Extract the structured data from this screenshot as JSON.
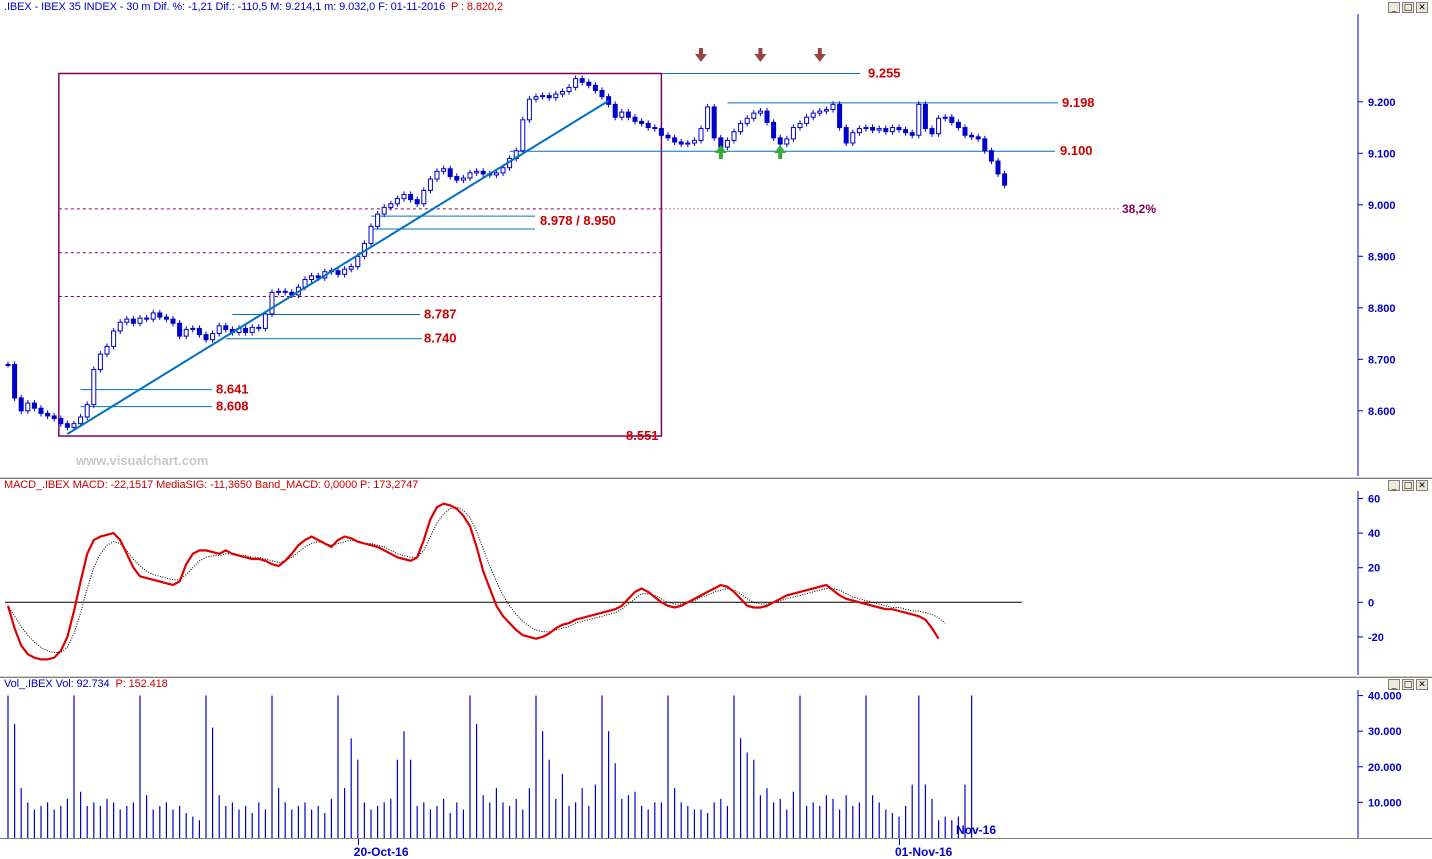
{
  "main_panel": {
    "header_main": ".IBEX - IBEX 35 INDEX -  30 m  Dif. %: -1,21  Dif.: -110,5  M: 9.214,1  m: 9.032,0  F: 01-11-2016",
    "header_price": "P : 8.820,2",
    "watermark": "www.visualchart.com"
  },
  "macd_panel": {
    "header_main": "MACD_.IBEX MACD: -22,1517  MediaSIG: -11,3650  Band_MACD: 0,0000  P: 173,2747"
  },
  "vol_panel": {
    "header_main": "Vol_.IBEX Vol: 92.734",
    "header_price": "P: 152.418",
    "inline_label": "Nov-16"
  },
  "window_buttons": [
    "_",
    "□",
    "✕"
  ],
  "x_axis": {
    "date_labels": [
      {
        "label": "20-Oct-16",
        "bar": 53
      },
      {
        "label": "01-Nov-16",
        "bar": 135
      }
    ]
  },
  "colors": {
    "candles": "#0000cc",
    "levels": "#cc0000",
    "trend": "#0070c0",
    "fib": "#800060",
    "macd": "#dd0000",
    "signal": "#000000",
    "vol": "#0000cc",
    "up_arrow": "#3aa83a",
    "down_arrow": "#994444"
  },
  "chart_data": [
    {
      "type": "candlestick",
      "y_axis": {
        "ticks": [
          "9.200",
          "9.100",
          "9.000",
          "8.900",
          "8.800",
          "8.700",
          "8.600"
        ],
        "ylim": [
          8520,
          9320
        ],
        "right_side": true
      },
      "levels": [
        {
          "label": "9.255",
          "value": 9255
        },
        {
          "label": "9.198",
          "value": 9198
        },
        {
          "label": "9.100",
          "value": 9104
        },
        {
          "label": "8.978 / 8.950",
          "value": 8978,
          "value2": 8953
        },
        {
          "label": "8.787",
          "value": 8787
        },
        {
          "label": "8.740",
          "value": 8740
        },
        {
          "label": "8.641",
          "value": 8641
        },
        {
          "label": "8.608",
          "value": 8608
        },
        {
          "label": "8.551",
          "value": 8551
        }
      ],
      "fib_label": "38,2%",
      "fib_lines": [
        8992,
        8907,
        8822
      ],
      "trendline": {
        "from_bar": 9,
        "from_value": 8555,
        "to_bar": 91,
        "to_value": 9202
      },
      "arrows_down_bars": [
        105,
        114,
        123
      ],
      "arrows_up_bars": [
        108,
        117
      ],
      "close_series": [
        8690,
        8625,
        8600,
        8615,
        8605,
        8595,
        8590,
        8585,
        8575,
        8568,
        8575,
        8588,
        8612,
        8680,
        8710,
        8725,
        8755,
        8772,
        8778,
        8770,
        8780,
        8778,
        8790,
        8782,
        8778,
        8770,
        8745,
        8758,
        8760,
        8748,
        8738,
        8750,
        8765,
        8758,
        8752,
        8760,
        8752,
        8762,
        8760,
        8788,
        8830,
        8832,
        8830,
        8825,
        8840,
        8855,
        8862,
        8858,
        8870,
        8872,
        8865,
        8875,
        8880,
        8900,
        8925,
        8958,
        8982,
        8995,
        9002,
        9012,
        9020,
        9010,
        9002,
        9028,
        9050,
        9065,
        9070,
        9055,
        9048,
        9052,
        9062,
        9065,
        9060,
        9058,
        9062,
        9072,
        9090,
        9105,
        9165,
        9205,
        9210,
        9212,
        9208,
        9215,
        9220,
        9228,
        9245,
        9238,
        9232,
        9222,
        9210,
        9195,
        9170,
        9180,
        9170,
        9162,
        9158,
        9150,
        9148,
        9135,
        9130,
        9122,
        9118,
        9120,
        9125,
        9148,
        9190,
        9130,
        9112,
        9125,
        9142,
        9158,
        9168,
        9178,
        9182,
        9160,
        9130,
        9118,
        9128,
        9150,
        9158,
        9170,
        9178,
        9182,
        9185,
        9195,
        9150,
        9120,
        9140,
        9148,
        9150,
        9145,
        9148,
        9142,
        9150,
        9146,
        9140,
        9135,
        9195,
        9148,
        9138,
        9168,
        9170,
        9160,
        9150,
        9135,
        9132,
        9128,
        9105,
        9085,
        9060,
        9038
      ]
    },
    {
      "type": "line",
      "y_axis": {
        "ticks": [
          "60",
          "40",
          "20",
          "0",
          "-20"
        ],
        "ylim": [
          -42,
          62
        ]
      },
      "zero_line": 0,
      "series": [
        {
          "values": [
            -2,
            -15,
            -25,
            -30,
            -32,
            -33,
            -33,
            -32,
            -28,
            -20,
            -5,
            12,
            28,
            36,
            38,
            39,
            40,
            36,
            28,
            20,
            15,
            14,
            13,
            12,
            11,
            10,
            12,
            22,
            28,
            30,
            30,
            29,
            28,
            30,
            28,
            27,
            26,
            25,
            25,
            24,
            22,
            21,
            24,
            28,
            33,
            36,
            38,
            36,
            34,
            32,
            36,
            38,
            37,
            35,
            34,
            33,
            32,
            30,
            28,
            26,
            25,
            24,
            26,
            36,
            48,
            55,
            57,
            56,
            54,
            50,
            44,
            32,
            18,
            8,
            -2,
            -8,
            -12,
            -16,
            -19,
            -20,
            -21,
            -20,
            -18,
            -15,
            -13,
            -12,
            -10,
            -9,
            -8,
            -7,
            -6,
            -5,
            -4,
            -2,
            2,
            6,
            8,
            6,
            3,
            0,
            -2,
            -3,
            -2,
            0,
            2,
            4,
            6,
            8,
            10,
            9,
            6,
            2,
            -2,
            -3,
            -3,
            -2,
            0,
            2,
            4,
            5,
            6,
            7,
            8,
            9,
            10,
            7,
            4,
            2,
            1,
            0,
            -1,
            -2,
            -3,
            -4,
            -4,
            -5,
            -6,
            -7,
            -8,
            -10,
            -15,
            -21
          ]
        },
        {
          "values": [
            -2,
            -8,
            -14,
            -19,
            -23,
            -26,
            -28,
            -29,
            -29,
            -26,
            -18,
            -6,
            8,
            20,
            28,
            33,
            35,
            34,
            30,
            25,
            21,
            18,
            16,
            15,
            14,
            13,
            13,
            16,
            20,
            24,
            26,
            27,
            27,
            28,
            28,
            27,
            27,
            26,
            26,
            25,
            24,
            23,
            24,
            26,
            29,
            32,
            34,
            35,
            34,
            33,
            34,
            35,
            36,
            35,
            34,
            34,
            33,
            32,
            30,
            28,
            27,
            26,
            26,
            30,
            38,
            46,
            51,
            54,
            55,
            53,
            49,
            41,
            31,
            21,
            12,
            4,
            -2,
            -7,
            -11,
            -14,
            -16,
            -17,
            -17,
            -16,
            -15,
            -14,
            -12,
            -11,
            -10,
            -9,
            -8,
            -7,
            -6,
            -4,
            -1,
            2,
            5,
            5,
            4,
            2,
            0,
            -1,
            -1,
            0,
            1,
            3,
            4,
            6,
            7,
            8,
            7,
            5,
            2,
            0,
            -1,
            -1,
            0,
            1,
            2,
            3,
            4,
            5,
            6,
            7,
            8,
            8,
            7,
            5,
            3,
            2,
            1,
            0,
            -1,
            -2,
            -3,
            -3,
            -4,
            -5,
            -5,
            -6,
            -7,
            -9,
            -12
          ]
        }
      ]
    },
    {
      "type": "bar",
      "y_axis": {
        "ticks": [
          "40.000",
          "30.000",
          "20.000",
          "10.000"
        ],
        "ylim": [
          0,
          41000
        ]
      },
      "values": [
        40000,
        32000,
        14000,
        10000,
        8000,
        9000,
        10000,
        8000,
        9000,
        11000,
        40000,
        13000,
        9000,
        10000,
        9000,
        11000,
        10000,
        8000,
        9000,
        10000,
        40000,
        12000,
        8000,
        9000,
        10000,
        8000,
        9000,
        7000,
        6000,
        5000,
        40000,
        31000,
        12000,
        9000,
        10000,
        8000,
        9000,
        7000,
        10000,
        8000,
        40000,
        14000,
        10000,
        8000,
        9000,
        10000,
        8000,
        9000,
        7000,
        11000,
        40000,
        14000,
        28000,
        22000,
        10000,
        8000,
        9000,
        10000,
        11000,
        22000,
        30000,
        22000,
        9000,
        10000,
        8000,
        9000,
        11000,
        7000,
        10000,
        8000,
        40000,
        32000,
        12000,
        10000,
        14000,
        10000,
        9000,
        11000,
        8000,
        14000,
        40000,
        30000,
        22000,
        11000,
        18000,
        9000,
        10000,
        14000,
        9000,
        15000,
        40000,
        30000,
        21000,
        11000,
        12000,
        13000,
        9000,
        8000,
        10000,
        10000,
        40000,
        14000,
        10000,
        9000,
        8000,
        8000,
        7000,
        10000,
        11000,
        9000,
        40000,
        28000,
        24000,
        22000,
        12000,
        14000,
        10000,
        11000,
        8000,
        13000,
        40000,
        9000,
        10000,
        9000,
        12000,
        11000,
        8000,
        12000,
        9000,
        10000,
        40000,
        12000,
        10000,
        8000,
        7000,
        6000,
        9000,
        15000,
        40000,
        15000,
        11000,
        5000,
        6000,
        5000,
        6000,
        15000,
        40000
      ]
    }
  ]
}
